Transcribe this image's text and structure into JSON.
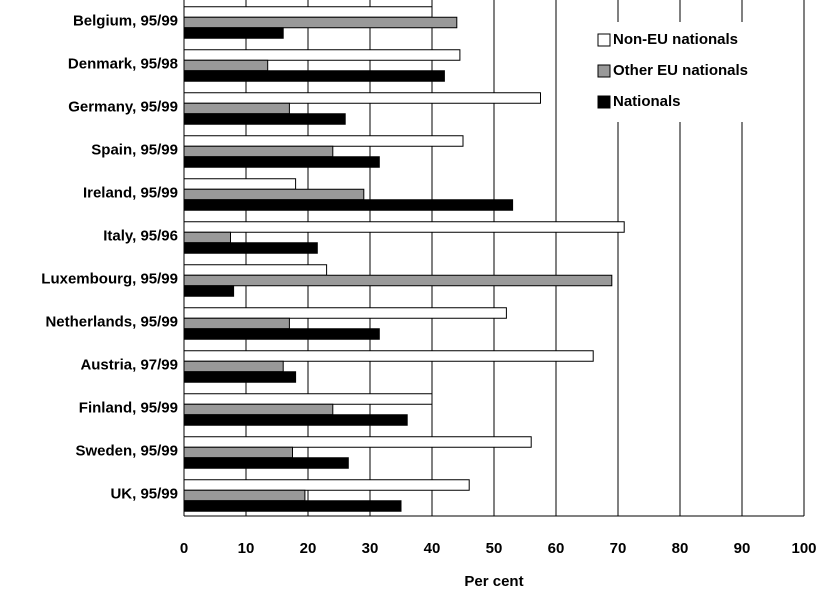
{
  "chart_data": {
    "type": "bar",
    "orientation": "horizontal",
    "categories": [
      "Belgium, 95/99",
      "Denmark, 95/98",
      "Germany, 95/99",
      "Spain, 95/99",
      "Ireland, 95/99",
      "Italy, 95/96",
      "Luxembourg, 95/99",
      "Netherlands, 95/99",
      "Austria, 97/99",
      "Finland, 95/99",
      "Sweden, 95/99",
      "UK, 95/99"
    ],
    "series": [
      {
        "name": "Non-EU nationals",
        "color": "#ffffff",
        "values": [
          40,
          44.5,
          57.5,
          45,
          18,
          71,
          23,
          52,
          66,
          40,
          56,
          46
        ]
      },
      {
        "name": "Other EU nationals",
        "color": "#999999",
        "values": [
          44,
          13.5,
          17,
          24,
          29,
          7.5,
          69,
          17,
          16,
          24,
          17.5,
          19.5
        ]
      },
      {
        "name": "Nationals",
        "color": "#000000",
        "values": [
          16,
          42,
          26,
          31.5,
          53,
          21.5,
          8,
          31.5,
          18,
          36,
          26.5,
          35
        ]
      }
    ],
    "xlim": [
      0,
      100
    ],
    "xticks": [
      0,
      10,
      20,
      30,
      40,
      50,
      60,
      70,
      80,
      90,
      100
    ],
    "xlabel": "Per cent",
    "ylabel": "",
    "title": "",
    "grid": "vertical",
    "legend_position": "top-right"
  }
}
